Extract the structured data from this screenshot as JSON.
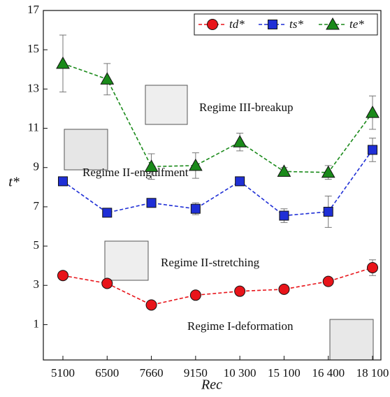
{
  "chart_data": {
    "type": "line",
    "x_label": "Rec",
    "y_label": "t*",
    "categories": [
      "5100",
      "6500",
      "7660",
      "9150",
      "10 300",
      "15 100",
      "16 400",
      "18 100"
    ],
    "ylim": [
      -0.8,
      17
    ],
    "yticks": [
      1,
      3,
      5,
      7,
      9,
      11,
      13,
      15,
      17
    ],
    "legend": "top-right",
    "series": [
      {
        "name": "td*",
        "color": "#e8141a",
        "marker": "circle",
        "values": [
          3.5,
          3.1,
          2.0,
          2.5,
          2.7,
          2.8,
          3.2,
          3.9
        ],
        "errors": [
          0.15,
          0.2,
          0.2,
          0.2,
          0.2,
          0.15,
          0.15,
          0.4
        ]
      },
      {
        "name": "ts*",
        "color": "#1f2fd6",
        "marker": "square",
        "values": [
          8.3,
          6.7,
          7.2,
          6.9,
          8.3,
          6.55,
          6.75,
          9.9
        ],
        "errors": [
          0.1,
          0.1,
          0.1,
          0.3,
          0.1,
          0.35,
          0.8,
          0.6
        ]
      },
      {
        "name": "te*",
        "color": "#1a8a1a",
        "marker": "triangle",
        "values": [
          14.3,
          13.5,
          9.05,
          9.1,
          10.3,
          8.8,
          8.75,
          11.8
        ],
        "errors": [
          1.45,
          0.8,
          0.65,
          0.65,
          0.45,
          0.2,
          0.35,
          0.85
        ]
      }
    ],
    "annotations": [
      "Regime III-breakup",
      "Regime II-engulfment",
      "Regime II-stretching",
      "Regime I-deformation"
    ]
  }
}
